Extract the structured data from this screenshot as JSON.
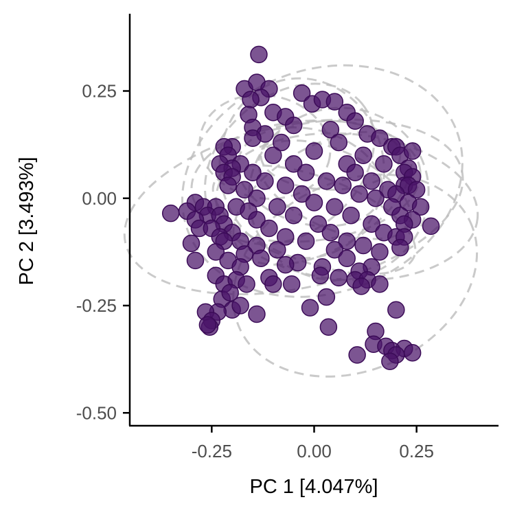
{
  "chart_data": {
    "type": "scatter",
    "title": "",
    "xlabel": "PC 1 [4.047%]",
    "ylabel": "PC 2 [3.493%]",
    "xlim": [
      -0.45,
      0.45
    ],
    "ylim": [
      -0.53,
      0.43
    ],
    "x_ticks": [
      -0.25,
      0.0,
      0.25
    ],
    "x_tick_labels": [
      "-0.25",
      "0.00",
      "0.25"
    ],
    "y_ticks": [
      -0.5,
      -0.25,
      0.0,
      0.25
    ],
    "y_tick_labels": [
      "-0.50",
      "-0.25",
      "0.00",
      "0.25"
    ],
    "grid": false,
    "legend": "none",
    "colors": {
      "points": "#4a1468",
      "points_stroke": "#3b0b57",
      "ellipses": "#bdbdbd",
      "axis": "#000000"
    },
    "points": [
      [
        -0.135,
        0.335
      ],
      [
        -0.17,
        0.255
      ],
      [
        -0.14,
        0.27
      ],
      [
        -0.11,
        0.255
      ],
      [
        -0.13,
        0.235
      ],
      [
        -0.155,
        0.23
      ],
      [
        -0.03,
        0.245
      ],
      [
        -0.005,
        0.22
      ],
      [
        0.02,
        0.23
      ],
      [
        0.05,
        0.225
      ],
      [
        -0.16,
        0.195
      ],
      [
        -0.1,
        0.2
      ],
      [
        -0.07,
        0.19
      ],
      [
        0.08,
        0.2
      ],
      [
        0.1,
        0.18
      ],
      [
        -0.15,
        0.165
      ],
      [
        -0.05,
        0.17
      ],
      [
        -0.12,
        0.15
      ],
      [
        0.04,
        0.16
      ],
      [
        0.13,
        0.15
      ],
      [
        0.16,
        0.14
      ],
      [
        -0.15,
        0.14
      ],
      [
        -0.2,
        0.12
      ],
      [
        -0.08,
        0.13
      ],
      [
        0.06,
        0.13
      ],
      [
        0.19,
        0.12
      ],
      [
        -0.22,
        0.12
      ],
      [
        0.2,
        0.12
      ],
      [
        -0.21,
        0.1
      ],
      [
        -0.1,
        0.1
      ],
      [
        0.0,
        0.11
      ],
      [
        0.12,
        0.1
      ],
      [
        0.21,
        0.1
      ],
      [
        0.24,
        0.11
      ],
      [
        -0.23,
        0.08
      ],
      [
        -0.18,
        0.08
      ],
      [
        -0.05,
        0.08
      ],
      [
        0.08,
        0.08
      ],
      [
        0.17,
        0.08
      ],
      [
        0.23,
        0.07
      ],
      [
        -0.2,
        0.07
      ],
      [
        -0.22,
        0.06
      ],
      [
        -0.15,
        0.06
      ],
      [
        -0.02,
        0.06
      ],
      [
        0.1,
        0.06
      ],
      [
        0.22,
        0.06
      ],
      [
        0.24,
        0.05
      ],
      [
        -0.2,
        0.05
      ],
      [
        -0.12,
        0.04
      ],
      [
        0.03,
        0.04
      ],
      [
        0.14,
        0.04
      ],
      [
        0.22,
        0.03
      ],
      [
        -0.21,
        0.03
      ],
      [
        -0.07,
        0.03
      ],
      [
        0.07,
        0.03
      ],
      [
        0.18,
        0.02
      ],
      [
        0.23,
        0.03
      ],
      [
        0.25,
        0.02
      ],
      [
        -0.17,
        0.02
      ],
      [
        -0.03,
        0.01
      ],
      [
        0.11,
        0.01
      ],
      [
        0.2,
        0.01
      ],
      [
        -0.14,
        0.0
      ],
      [
        0.0,
        -0.01
      ],
      [
        0.15,
        0.0
      ],
      [
        -0.29,
        -0.01
      ],
      [
        -0.27,
        -0.02
      ],
      [
        -0.24,
        -0.02
      ],
      [
        -0.19,
        -0.02
      ],
      [
        -0.09,
        -0.02
      ],
      [
        0.05,
        -0.02
      ],
      [
        0.19,
        -0.02
      ],
      [
        0.23,
        -0.01
      ],
      [
        0.26,
        -0.02
      ],
      [
        -0.35,
        -0.035
      ],
      [
        -0.31,
        -0.03
      ],
      [
        -0.26,
        -0.04
      ],
      [
        -0.23,
        -0.04
      ],
      [
        -0.16,
        -0.03
      ],
      [
        -0.05,
        -0.04
      ],
      [
        0.09,
        -0.04
      ],
      [
        0.21,
        -0.04
      ],
      [
        0.24,
        -0.05
      ],
      [
        -0.29,
        -0.05
      ],
      [
        -0.22,
        -0.06
      ],
      [
        -0.14,
        -0.05
      ],
      [
        0.01,
        -0.06
      ],
      [
        0.14,
        -0.06
      ],
      [
        0.22,
        -0.06
      ],
      [
        0.285,
        -0.065
      ],
      [
        -0.28,
        -0.07
      ],
      [
        -0.25,
        -0.07
      ],
      [
        -0.2,
        -0.08
      ],
      [
        -0.11,
        -0.07
      ],
      [
        0.04,
        -0.08
      ],
      [
        0.17,
        -0.08
      ],
      [
        -0.23,
        -0.09
      ],
      [
        -0.18,
        -0.1
      ],
      [
        -0.07,
        -0.09
      ],
      [
        0.08,
        -0.1
      ],
      [
        0.2,
        -0.09
      ],
      [
        0.22,
        -0.09
      ],
      [
        -0.3,
        -0.105
      ],
      [
        -0.22,
        -0.1
      ],
      [
        -0.14,
        -0.11
      ],
      [
        -0.02,
        -0.1
      ],
      [
        0.12,
        -0.11
      ],
      [
        0.21,
        -0.115
      ],
      [
        -0.24,
        -0.125
      ],
      [
        -0.17,
        -0.13
      ],
      [
        -0.09,
        -0.12
      ],
      [
        0.05,
        -0.12
      ],
      [
        0.16,
        -0.125
      ],
      [
        -0.29,
        -0.145
      ],
      [
        -0.21,
        -0.145
      ],
      [
        -0.13,
        -0.14
      ],
      [
        -0.04,
        -0.15
      ],
      [
        0.08,
        -0.14
      ],
      [
        0.14,
        -0.16
      ],
      [
        -0.18,
        -0.16
      ],
      [
        -0.07,
        -0.155
      ],
      [
        0.02,
        -0.16
      ],
      [
        0.11,
        -0.17
      ],
      [
        -0.24,
        -0.18
      ],
      [
        -0.22,
        -0.2
      ],
      [
        -0.19,
        -0.19
      ],
      [
        -0.165,
        -0.2
      ],
      [
        -0.11,
        -0.185
      ],
      [
        -0.1,
        -0.2
      ],
      [
        -0.055,
        -0.2
      ],
      [
        0.015,
        -0.18
      ],
      [
        0.06,
        -0.185
      ],
      [
        0.1,
        -0.19
      ],
      [
        0.13,
        -0.19
      ],
      [
        0.16,
        -0.2
      ],
      [
        0.115,
        -0.205
      ],
      [
        -0.225,
        -0.235
      ],
      [
        -0.205,
        -0.22
      ],
      [
        -0.2,
        -0.26
      ],
      [
        -0.235,
        -0.265
      ],
      [
        -0.18,
        -0.25
      ],
      [
        -0.14,
        -0.27
      ],
      [
        0.03,
        -0.23
      ],
      [
        -0.01,
        -0.255
      ],
      [
        0.2,
        -0.26
      ],
      [
        -0.265,
        -0.265
      ],
      [
        -0.25,
        -0.285
      ],
      [
        -0.255,
        -0.3
      ],
      [
        -0.26,
        -0.295
      ],
      [
        0.035,
        -0.3
      ],
      [
        0.15,
        -0.31
      ],
      [
        0.145,
        -0.34
      ],
      [
        0.175,
        -0.345
      ],
      [
        0.22,
        -0.35
      ],
      [
        0.19,
        -0.355
      ],
      [
        0.2,
        -0.365
      ],
      [
        0.24,
        -0.36
      ],
      [
        0.185,
        -0.38
      ],
      [
        0.105,
        -0.365
      ]
    ],
    "ellipses": [
      {
        "cx": -0.03,
        "cy": 0.07,
        "rx": 0.2,
        "ry": 0.21,
        "angle": -10
      },
      {
        "cx": 0.02,
        "cy": 0.04,
        "rx": 0.35,
        "ry": 0.26,
        "angle": -20
      },
      {
        "cx": -0.05,
        "cy": -0.02,
        "rx": 0.42,
        "ry": 0.19,
        "angle": -12
      },
      {
        "cx": 0.1,
        "cy": -0.18,
        "rx": 0.31,
        "ry": 0.22,
        "angle": -25
      },
      {
        "cx": -0.02,
        "cy": 0.04,
        "rx": 0.28,
        "ry": 0.14,
        "angle": -5
      },
      {
        "cx": 0.05,
        "cy": 0.02,
        "rx": 0.2,
        "ry": 0.09,
        "angle": 25
      },
      {
        "cx": 0.02,
        "cy": 0.0,
        "rx": 0.24,
        "ry": 0.12,
        "angle": -30
      },
      {
        "cx": -0.01,
        "cy": 0.05,
        "rx": 0.18,
        "ry": 0.11,
        "angle": 15
      },
      {
        "cx": 0.08,
        "cy": -0.02,
        "rx": 0.32,
        "ry": 0.17,
        "angle": 5
      },
      {
        "cx": -0.06,
        "cy": 0.08,
        "rx": 0.23,
        "ry": 0.16,
        "angle": -40
      },
      {
        "cx": -0.12,
        "cy": 0.12,
        "rx": 0.16,
        "ry": 0.12,
        "angle": 10
      },
      {
        "cx": 0.04,
        "cy": 0.1,
        "rx": 0.17,
        "ry": 0.08,
        "angle": 0
      },
      {
        "cx": 0.0,
        "cy": -0.05,
        "rx": 0.26,
        "ry": 0.1,
        "angle": 20
      },
      {
        "cx": 0.06,
        "cy": 0.01,
        "rx": 0.22,
        "ry": 0.2,
        "angle": -15
      }
    ]
  }
}
